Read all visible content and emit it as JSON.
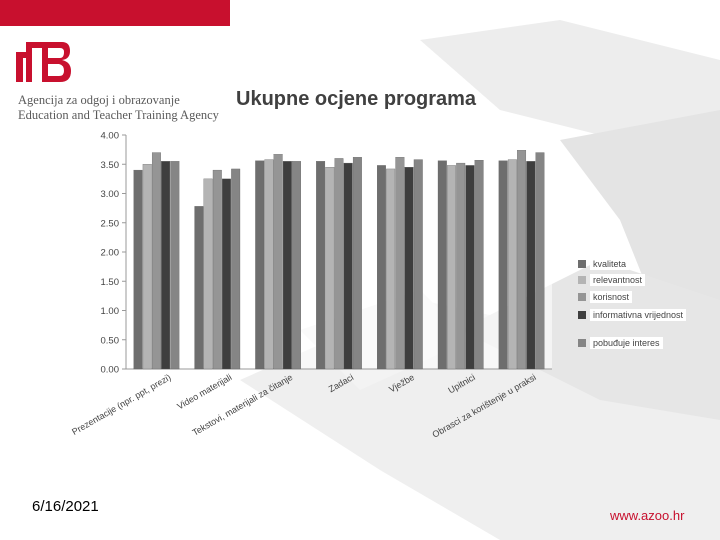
{
  "header": {
    "org_line1": "Agencija za odgoj i obrazovanje",
    "org_line2": "Education and Teacher Training Agency"
  },
  "footer": {
    "date": "6/16/2021",
    "url": "www.azoo.hr"
  },
  "colors": {
    "brand": "#c8102e",
    "series": [
      "#6e6e6e",
      "#b4b4b4",
      "#959595",
      "#3e3e3e",
      "#858585"
    ]
  },
  "chart_data": {
    "type": "bar",
    "title": "Ukupne ocjene programa",
    "ylim": [
      0,
      4
    ],
    "yticks": [
      "0.00",
      "0.50",
      "1.00",
      "1.50",
      "2.00",
      "2.50",
      "3.00",
      "3.50",
      "4.00"
    ],
    "grid": false,
    "legend_position": "right",
    "categories": [
      "Prezentacije (npr. ppt, prezi)",
      "Video materijali",
      "Tekstovi, materijali za čitanje",
      "Zadaci",
      "Vježbe",
      "Upitnici",
      "Obrasci za korištenje u praksi"
    ],
    "series": [
      {
        "name": "kvaliteta",
        "values": [
          3.4,
          2.78,
          3.56,
          3.55,
          3.48,
          3.56,
          3.56
        ]
      },
      {
        "name": "relevantnost",
        "values": [
          3.5,
          3.25,
          3.58,
          3.45,
          3.42,
          3.48,
          3.58
        ]
      },
      {
        "name": "korisnost",
        "values": [
          3.7,
          3.4,
          3.67,
          3.6,
          3.62,
          3.52,
          3.74
        ]
      },
      {
        "name": "informativna vrijednost",
        "values": [
          3.55,
          3.25,
          3.55,
          3.52,
          3.45,
          3.48,
          3.55
        ]
      },
      {
        "name": "pobuđuje interes",
        "values": [
          3.55,
          3.42,
          3.55,
          3.62,
          3.58,
          3.57,
          3.7
        ]
      }
    ]
  }
}
